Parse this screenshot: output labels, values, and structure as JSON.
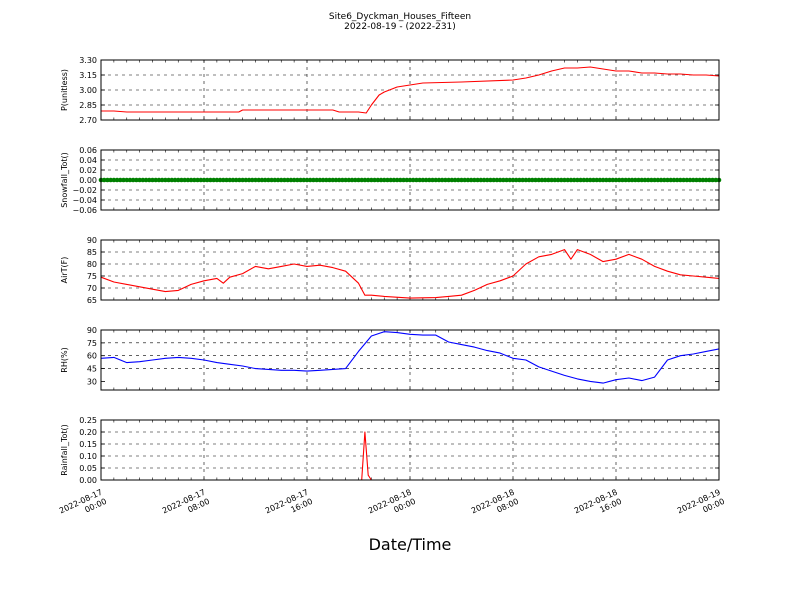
{
  "figure": {
    "title_line1": "Site6_Dyckman_Houses_Fifteen",
    "title_line2": "2022-08-19 - (2022-231)",
    "xlabel": "Date/Time",
    "x_tick_labels": [
      [
        "2022-08-17",
        "00:00"
      ],
      [
        "2022-08-17",
        "08:00"
      ],
      [
        "2022-08-17",
        "16:00"
      ],
      [
        "2022-08-18",
        "00:00"
      ],
      [
        "2022-08-18",
        "08:00"
      ],
      [
        "2022-08-18",
        "16:00"
      ],
      [
        "2022-08-19",
        "00:00"
      ]
    ]
  },
  "chart_data": [
    {
      "type": "line",
      "ylabel": "P(unitless)",
      "ylim": [
        2.7,
        3.3
      ],
      "yticks": [
        "2.70",
        "2.85",
        "3.00",
        "3.15",
        "3.30"
      ],
      "xlim_hours": [
        0,
        48
      ],
      "grid": true,
      "color": "#ff0000",
      "x": [
        0,
        1,
        2,
        4,
        8,
        10.7,
        11,
        14,
        18,
        18.5,
        20,
        20.6,
        21,
        21.6,
        22,
        23,
        24,
        25,
        28,
        32,
        33,
        34,
        35,
        36,
        37,
        38,
        39,
        40,
        41,
        42,
        43,
        44,
        45,
        46,
        47,
        48
      ],
      "values": [
        2.79,
        2.79,
        2.78,
        2.78,
        2.78,
        2.78,
        2.8,
        2.8,
        2.8,
        2.78,
        2.78,
        2.77,
        2.85,
        2.95,
        2.98,
        3.03,
        3.05,
        3.07,
        3.08,
        3.1,
        3.12,
        3.15,
        3.19,
        3.22,
        3.22,
        3.23,
        3.21,
        3.19,
        3.19,
        3.17,
        3.17,
        3.16,
        3.16,
        3.15,
        3.15,
        3.14
      ]
    },
    {
      "type": "scatter",
      "ylabel": "Snowfall_Tot()",
      "ylim": [
        -0.06,
        0.06
      ],
      "yticks": [
        "−0.06",
        "−0.04",
        "−0.02",
        "0.00",
        "0.02",
        "0.04",
        "0.06"
      ],
      "xlim_hours": [
        0,
        48
      ],
      "grid": true,
      "color": "#008000",
      "x_start": 0,
      "x_end": 48,
      "x_step": 0.25,
      "constant_value": 0.0
    },
    {
      "type": "line",
      "ylabel": "AirT(F)",
      "ylim": [
        65,
        90
      ],
      "yticks": [
        "65",
        "70",
        "75",
        "80",
        "85",
        "90"
      ],
      "xlim_hours": [
        0,
        48
      ],
      "grid": true,
      "color": "#ff0000",
      "x": [
        0,
        1,
        2,
        3,
        4,
        5,
        6,
        7,
        8,
        9,
        9.5,
        10,
        11,
        12,
        13,
        14,
        15,
        16,
        17,
        18,
        19,
        20,
        20.5,
        21,
        22,
        24,
        26,
        27,
        28,
        29,
        30,
        31,
        32,
        33,
        34,
        35,
        36,
        36.5,
        37,
        38,
        39,
        40,
        41,
        42,
        43,
        44,
        45,
        46,
        47,
        48
      ],
      "values": [
        74.5,
        72.5,
        71.5,
        70.5,
        69.5,
        68.5,
        69,
        71.5,
        73,
        74,
        72,
        74.5,
        76,
        79,
        78,
        79,
        80,
        79,
        79.5,
        78.5,
        77,
        72,
        67,
        67,
        66.5,
        65.8,
        66,
        66.5,
        67,
        69,
        71.5,
        73,
        75,
        80,
        83,
        84,
        86,
        82,
        86,
        84,
        81,
        82,
        84,
        82,
        79,
        77,
        75.5,
        75,
        74.5,
        74
      ]
    },
    {
      "type": "line",
      "ylabel": "RH(%)",
      "ylim": [
        20,
        90
      ],
      "yticks": [
        "30",
        "45",
        "60",
        "75",
        "90"
      ],
      "xlim_hours": [
        0,
        48
      ],
      "grid": true,
      "color": "#0000ff",
      "x": [
        0,
        1,
        2,
        3,
        4,
        5,
        6,
        7,
        8,
        9,
        10,
        11,
        12,
        13,
        14,
        15,
        16,
        17,
        18,
        19,
        20,
        21,
        22,
        23,
        24,
        25,
        26,
        27,
        28,
        29,
        30,
        31,
        32,
        33,
        34,
        35,
        36,
        37,
        38,
        39,
        40,
        41,
        42,
        43,
        44,
        45,
        46,
        47,
        48
      ],
      "values": [
        57,
        58,
        52,
        53,
        55,
        57,
        58,
        57,
        55,
        52,
        50,
        48,
        45,
        44,
        43,
        43,
        42,
        43,
        44,
        45,
        65,
        83,
        88,
        87,
        85,
        84,
        84,
        76,
        73,
        70,
        66,
        63,
        57,
        55,
        47,
        42,
        37,
        33,
        30,
        28,
        32,
        34,
        31,
        35,
        55,
        60,
        62,
        65,
        68
      ]
    },
    {
      "type": "line",
      "ylabel": "Rainfall_Tot()",
      "ylim": [
        0,
        0.25
      ],
      "yticks": [
        "0.00",
        "0.05",
        "0.10",
        "0.15",
        "0.20",
        "0.25"
      ],
      "xlim_hours": [
        0,
        48
      ],
      "grid": true,
      "color": "#ff0000",
      "x": [
        0,
        20.25,
        20.5,
        20.75,
        21,
        48
      ],
      "values": [
        0,
        0,
        0.2,
        0.02,
        0,
        0
      ]
    }
  ]
}
